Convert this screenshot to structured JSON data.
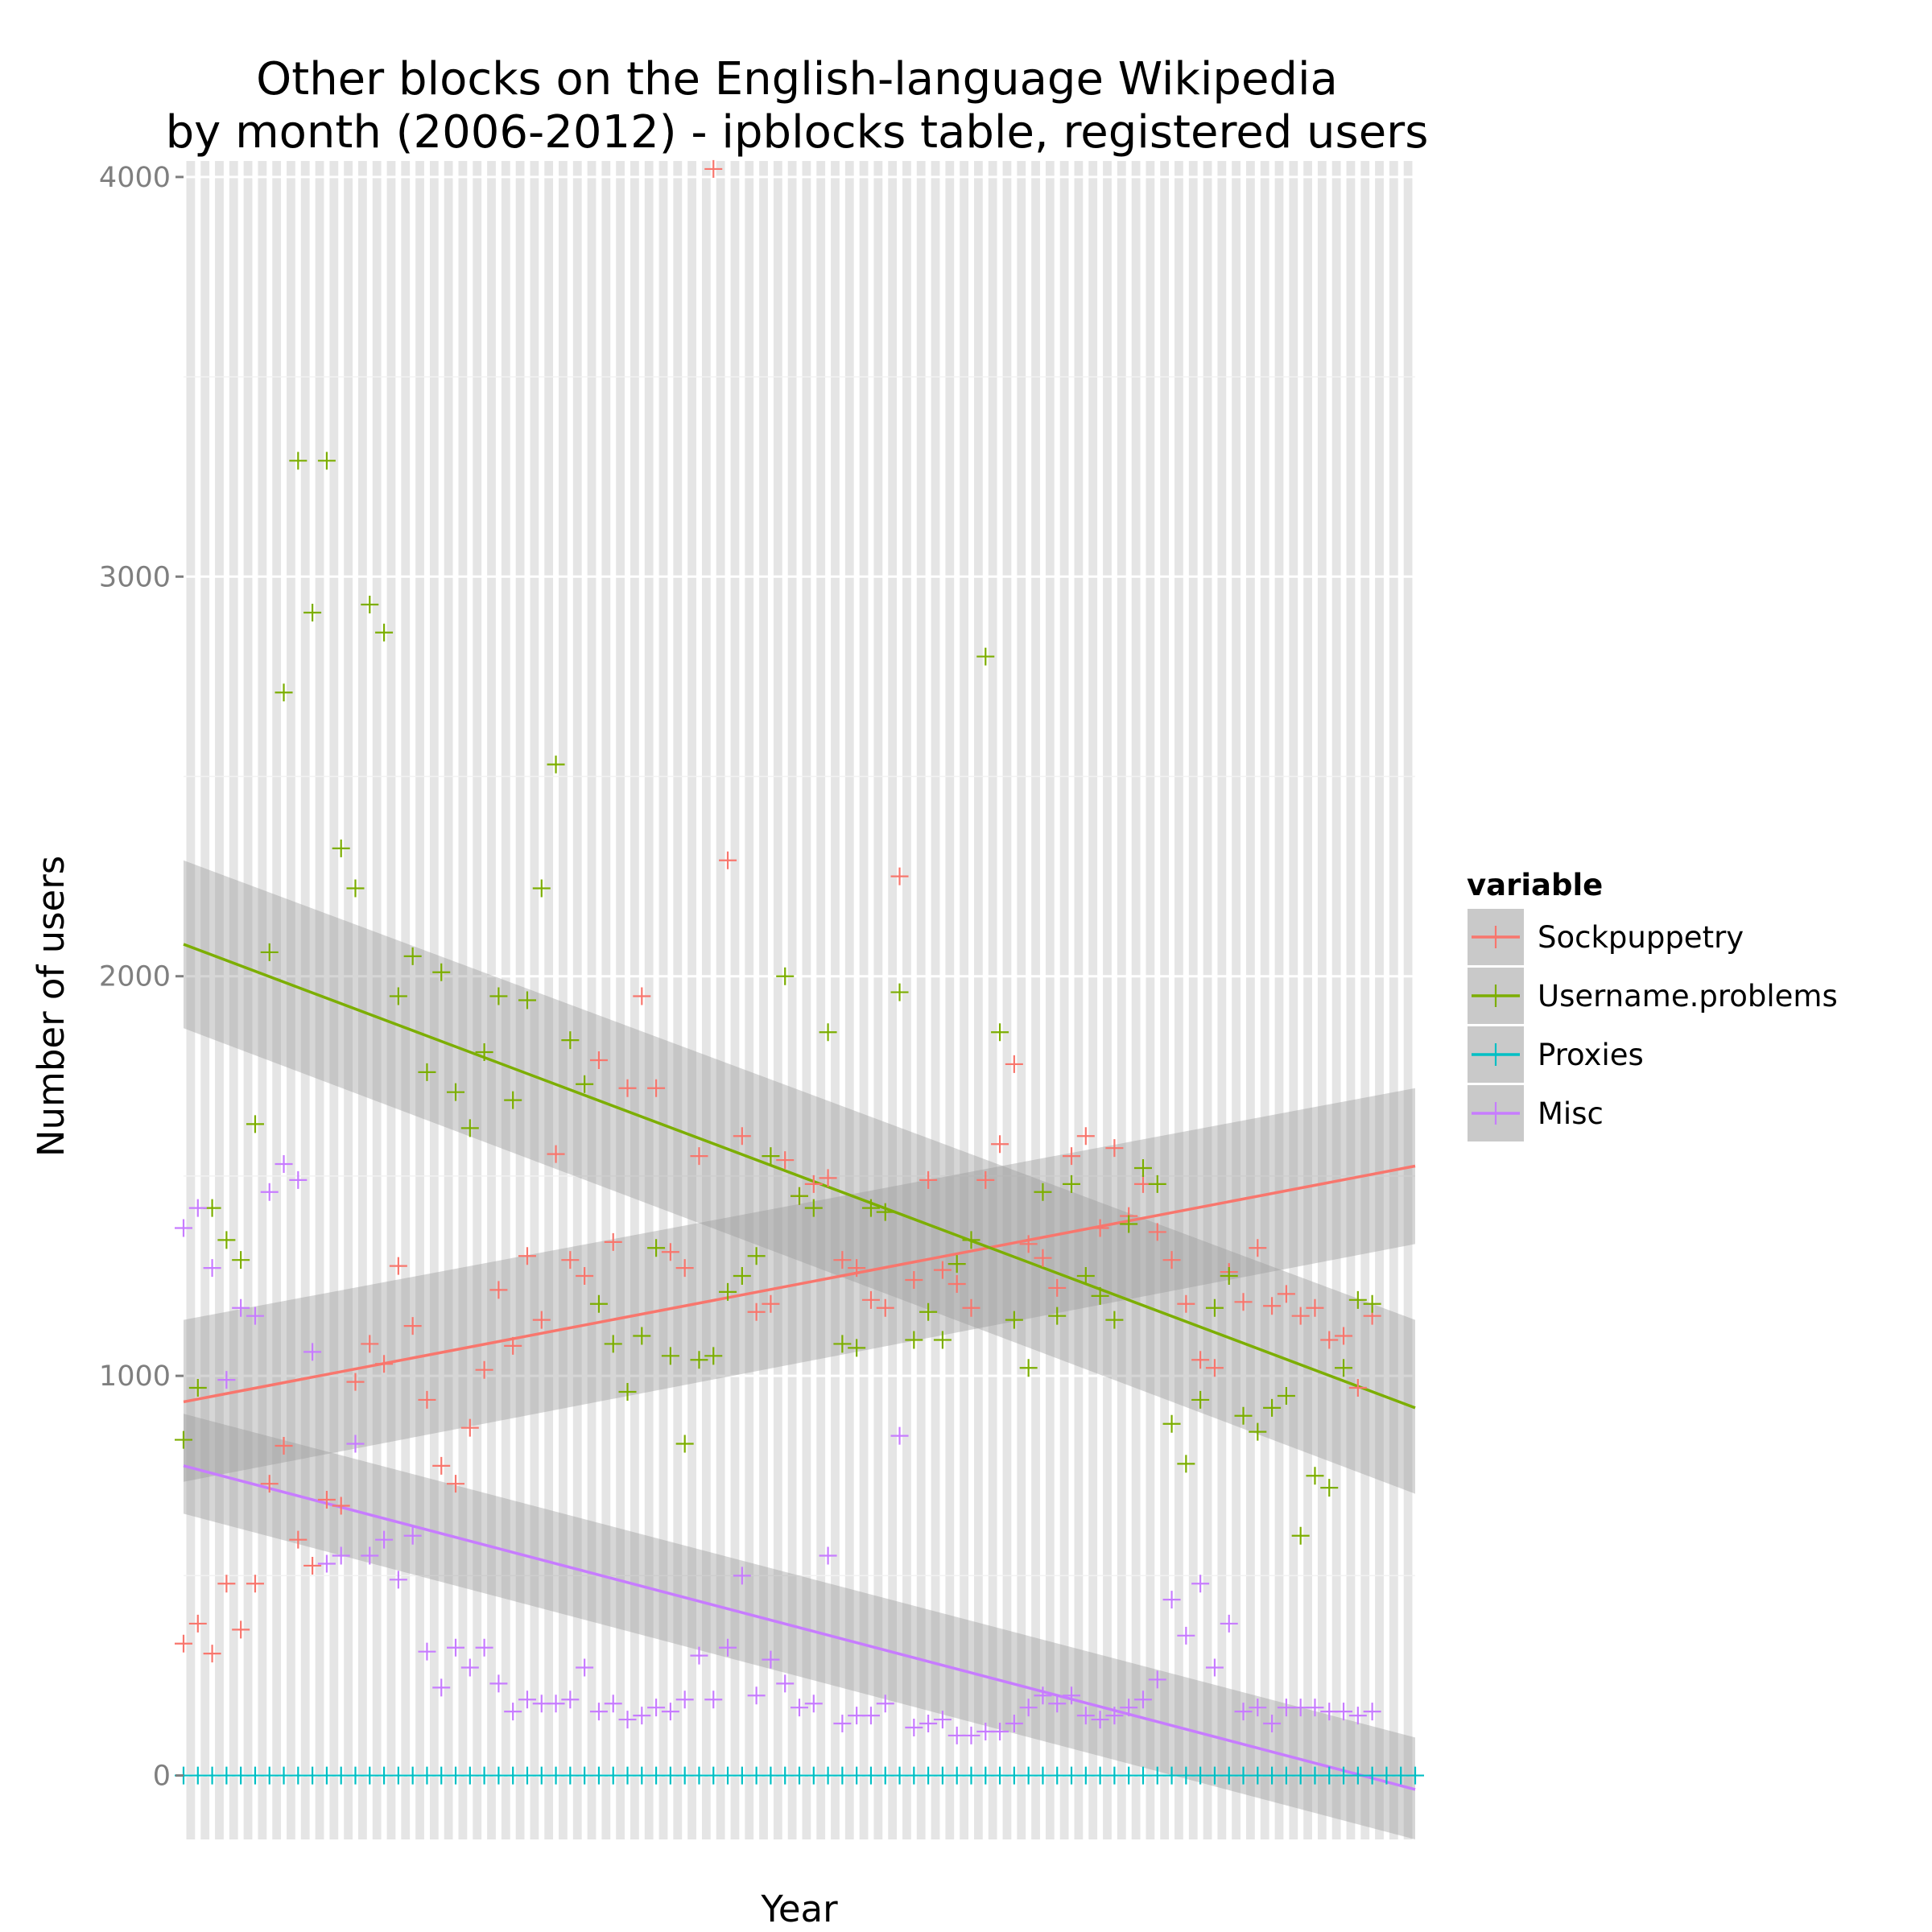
{
  "chart_data": {
    "type": "scatter",
    "title_lines": [
      "Other blocks on the English-language Wikipedia",
      "by month (2006-2012) - ipblocks table, registered users"
    ],
    "xlabel": "Year",
    "ylabel": "Number of users",
    "x": {
      "start_month": 1,
      "end_month": 87
    },
    "ylim": [
      -160,
      4040
    ],
    "yticks": [
      0,
      1000,
      2000,
      3000,
      4000
    ],
    "grid": true,
    "legend": {
      "title": "variable",
      "position": "right",
      "entries": [
        {
          "label": "Sockpuppetry",
          "color": "#F8766D"
        },
        {
          "label": "Username.problems",
          "color": "#7CAE00"
        },
        {
          "label": "Proxies",
          "color": "#00BFC4"
        },
        {
          "label": "Misc",
          "color": "#C77CFF"
        }
      ]
    },
    "series": [
      {
        "name": "Sockpuppetry",
        "color": "#F8766D",
        "values": [
          330,
          380,
          305,
          480,
          365,
          480,
          730,
          825,
          590,
          525,
          690,
          675,
          985,
          1080,
          1030,
          1275,
          1125,
          940,
          775,
          730,
          870,
          1015,
          1215,
          1075,
          1300,
          1140,
          1555,
          1290,
          1250,
          1790,
          1335,
          1720,
          1950,
          1720,
          1310,
          1270,
          1550,
          4020,
          2290,
          1600,
          1160,
          1180,
          1540,
          1450,
          1480,
          1495,
          1290,
          1270,
          1190,
          1170,
          2250,
          1240,
          1490,
          1265,
          1230,
          1170,
          1490,
          1580,
          1780,
          1330,
          1295,
          1220,
          1550,
          1600,
          1370,
          1570,
          1400,
          1480,
          1360,
          1290,
          1180,
          1040,
          1020,
          1260,
          1185,
          1320,
          1175,
          1205,
          1150,
          1170,
          1090,
          1100,
          970,
          1150
        ],
        "trend": [
          935,
          1525
        ],
        "band_start": [
          735,
          1140
        ],
        "band_end": [
          1330,
          1720
        ]
      },
      {
        "name": "Username.problems",
        "color": "#7CAE00",
        "values": [
          840,
          970,
          1420,
          1340,
          1290,
          1630,
          2060,
          2710,
          3290,
          2910,
          3290,
          2320,
          2220,
          2930,
          2860,
          1950,
          2050,
          1760,
          2010,
          1710,
          1620,
          1810,
          1950,
          1690,
          1940,
          2220,
          2530,
          1840,
          1730,
          1180,
          1080,
          960,
          1100,
          1320,
          1050,
          830,
          1040,
          1050,
          1210,
          1250,
          1300,
          1550,
          2000,
          1450,
          1420,
          1860,
          1080,
          1070,
          1420,
          1410,
          1960,
          1090,
          1160,
          1090,
          1280,
          1340,
          2800,
          1860,
          1140,
          1020,
          1460,
          1150,
          1480,
          1250,
          1200,
          1140,
          1380,
          1520,
          1480,
          880,
          780,
          940,
          1170,
          1250,
          900,
          860,
          920,
          950,
          600,
          750,
          720,
          1020,
          1190,
          1180
        ],
        "trend": [
          2080,
          920
        ],
        "band_start": [
          1870,
          2290
        ],
        "band_end": [
          705,
          1140
        ]
      },
      {
        "name": "Proxies",
        "color": "#00BFC4",
        "values": [
          0,
          0,
          0,
          0,
          0,
          0,
          0,
          0,
          0,
          0,
          0,
          0,
          0,
          0,
          0,
          0,
          0,
          0,
          0,
          0,
          0,
          0,
          0,
          0,
          0,
          0,
          0,
          0,
          0,
          0,
          0,
          0,
          0,
          0,
          0,
          0,
          0,
          0,
          0,
          0,
          0,
          0,
          0,
          0,
          0,
          0,
          0,
          0,
          0,
          0,
          0,
          0,
          0,
          0,
          0,
          0,
          0,
          0,
          0,
          0,
          0,
          0,
          0,
          0,
          0,
          0,
          0,
          0,
          0,
          0,
          0,
          0,
          0,
          0,
          0,
          0,
          0,
          0,
          0,
          0,
          0,
          0,
          0,
          0,
          0,
          0,
          0
        ]
      },
      {
        "name": "Misc",
        "color": "#C77CFF",
        "values": [
          1370,
          1420,
          1270,
          990,
          1170,
          1150,
          1460,
          1530,
          1490,
          1060,
          530,
          550,
          830,
          550,
          590,
          490,
          600,
          310,
          220,
          320,
          270,
          320,
          230,
          160,
          190,
          180,
          180,
          190,
          270,
          160,
          180,
          140,
          150,
          170,
          160,
          190,
          300,
          190,
          320,
          500,
          200,
          290,
          230,
          170,
          180,
          550,
          130,
          150,
          150,
          180,
          850,
          120,
          130,
          140,
          100,
          100,
          110,
          110,
          130,
          170,
          200,
          180,
          200,
          150,
          140,
          150,
          170,
          190,
          240,
          440,
          350,
          480,
          270,
          380,
          160,
          170,
          130,
          170,
          170,
          170,
          160,
          160,
          150,
          160
        ]
      }
    ],
    "misc_trend": [
      775,
      -35
    ],
    "misc_band_start": [
      655,
      905
    ],
    "misc_band_end": [
      -160,
      95
    ]
  }
}
